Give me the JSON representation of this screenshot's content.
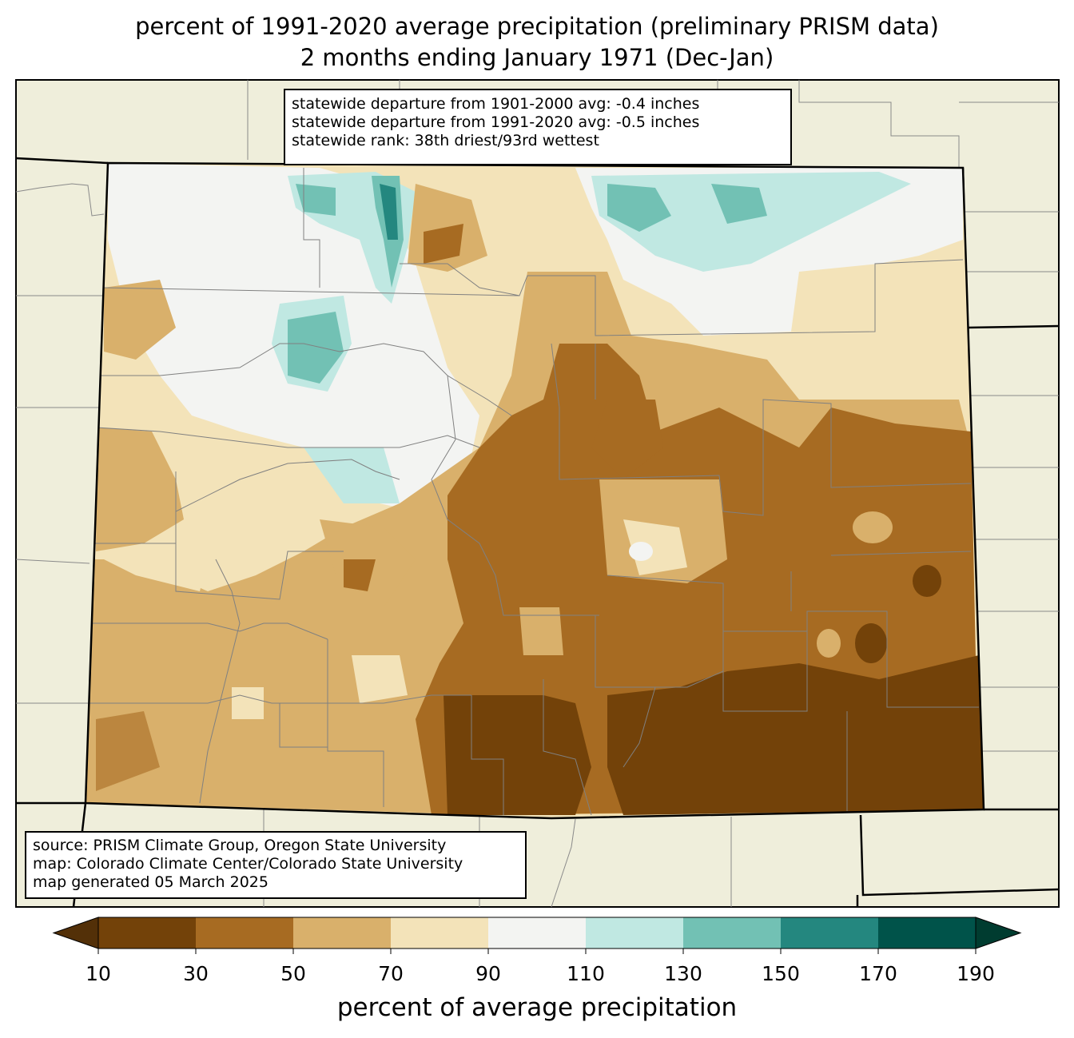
{
  "title": {
    "line1": "percent of 1991-2020 average precipitation (preliminary PRISM data)",
    "line2": "2 months ending January 1971 (Dec-Jan)"
  },
  "stats": {
    "line1": "statewide departure from 1901-2000 avg: -0.4 inches",
    "line2": "statewide departure from 1991-2020 avg: -0.5 inches",
    "line3": "statewide rank: 38th driest/93rd wettest"
  },
  "source": {
    "line1": "source: PRISM Climate Group, Oregon State University",
    "line2": "map: Colorado Climate Center/Colorado State University",
    "line3": "map generated 05 March 2025"
  },
  "colorbar": {
    "label": "percent of average precipitation",
    "ticks": [
      "10",
      "30",
      "50",
      "70",
      "90",
      "110",
      "130",
      "150",
      "170",
      "190"
    ],
    "colors": [
      "#734209",
      "#a76b22",
      "#d9b06b",
      "#f3e3b9",
      "#f3f4f2",
      "#c0e8e2",
      "#72c1b4",
      "#24877f",
      "#00534a"
    ],
    "under_color": "#533008",
    "over_color": "#003c30"
  },
  "map_colors": {
    "background": "#efeedb",
    "border": "#000000",
    "county_line": "#808080"
  }
}
